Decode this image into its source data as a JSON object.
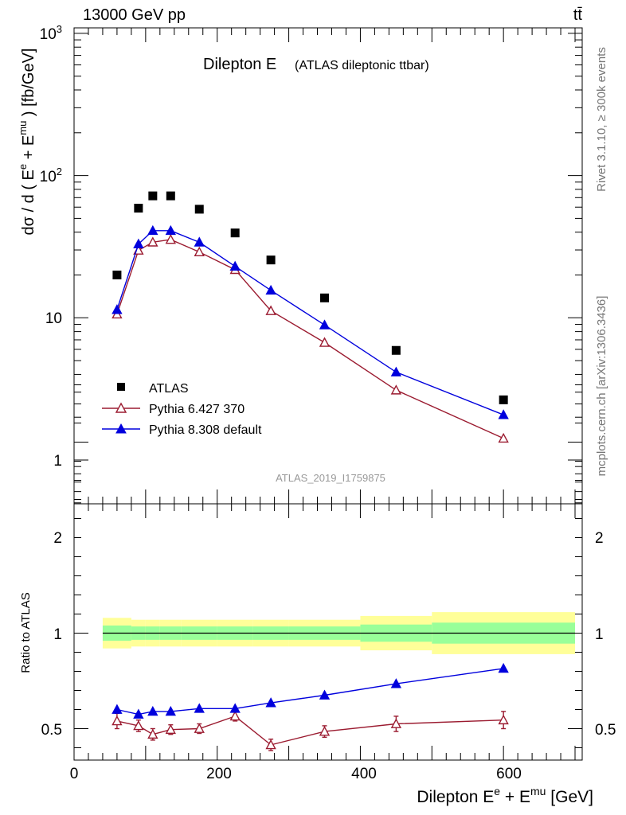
{
  "header": {
    "left": "13000 GeV pp",
    "right": "tt̄"
  },
  "side_labels": {
    "rivet": "Rivet 3.1.10, ≥ 300k events",
    "mcplots": "mcplots.cern.ch [arXiv:1306.3436]"
  },
  "chart_data": [
    {
      "type": "scatter",
      "title_main": "Dilepton E",
      "title_sub": "(ATLAS dileptonic ttbar)",
      "ylabel": "dσ / d ( E^e + E^mu ) [fb/GeV]",
      "yscale": "log",
      "ylim": [
        0.5,
        1000
      ],
      "xlim": [
        0,
        710
      ],
      "y_tick_labels": [
        "1",
        "10",
        "10^2",
        "10^3"
      ],
      "watermark": "ATLAS_2019_I1759875",
      "legend_position": "lower-left",
      "x": [
        60,
        90,
        110,
        135,
        175,
        225,
        275,
        350,
        450,
        600
      ],
      "series": [
        {
          "name": "ATLAS",
          "color": "#000000",
          "marker": "filled-square",
          "line": false,
          "values": [
            20.0,
            59.0,
            72.0,
            72.0,
            58.0,
            39.5,
            25.5,
            13.8,
            5.9,
            2.65
          ]
        },
        {
          "name": "Pythia 6.427 370",
          "color": "#9b1b30",
          "marker": "open-triangle",
          "line": true,
          "values": [
            10.6,
            29.8,
            34.0,
            35.5,
            29.0,
            21.8,
            11.2,
            6.7,
            3.1,
            1.42
          ]
        },
        {
          "name": "Pythia 8.308 default",
          "color": "#0000dd",
          "marker": "filled-triangle",
          "line": true,
          "values": [
            11.4,
            33.0,
            41.0,
            41.0,
            34.0,
            23.0,
            15.6,
            8.9,
            4.15,
            2.08
          ]
        }
      ]
    },
    {
      "type": "line",
      "ylabel": "Ratio to ATLAS",
      "xlabel": "Dilepton E^e + E^mu [GeV]",
      "xlim": [
        0,
        710
      ],
      "ylim": [
        0.35,
        2.4
      ],
      "x_tick_labels": [
        "0",
        "200",
        "400",
        "600"
      ],
      "y_tick_labels": [
        "0.5",
        "1",
        "2"
      ],
      "reference_line": 1,
      "x": [
        60,
        90,
        110,
        135,
        175,
        225,
        275,
        350,
        450,
        600
      ],
      "bands": {
        "edges": [
          40,
          80,
          100,
          120,
          150,
          200,
          250,
          300,
          400,
          500,
          700
        ],
        "yellow": [
          [
            0.92,
            1.08
          ],
          [
            0.93,
            1.07
          ],
          [
            0.93,
            1.07
          ],
          [
            0.93,
            1.07
          ],
          [
            0.93,
            1.07
          ],
          [
            0.93,
            1.07
          ],
          [
            0.93,
            1.07
          ],
          [
            0.93,
            1.07
          ],
          [
            0.91,
            1.09
          ],
          [
            0.89,
            1.11
          ]
        ],
        "green": [
          [
            0.96,
            1.04
          ],
          [
            0.965,
            1.035
          ],
          [
            0.965,
            1.035
          ],
          [
            0.965,
            1.035
          ],
          [
            0.965,
            1.035
          ],
          [
            0.965,
            1.035
          ],
          [
            0.965,
            1.035
          ],
          [
            0.965,
            1.035
          ],
          [
            0.955,
            1.045
          ],
          [
            0.945,
            1.055
          ]
        ],
        "yellow_color": "#ffff99",
        "green_color": "#99ff99"
      },
      "series": [
        {
          "name": "Pythia 6.427 370",
          "color": "#9b1b30",
          "marker": "open-triangle",
          "values": [
            0.54,
            0.515,
            0.47,
            0.495,
            0.5,
            0.565,
            0.415,
            0.485,
            0.525,
            0.545
          ],
          "errors": [
            0.04,
            0.03,
            0.03,
            0.025,
            0.025,
            0.025,
            0.03,
            0.03,
            0.04,
            0.045
          ]
        },
        {
          "name": "Pythia 8.308 default",
          "color": "#0000dd",
          "marker": "filled-triangle",
          "values": [
            0.6,
            0.575,
            0.59,
            0.59,
            0.605,
            0.605,
            0.635,
            0.675,
            0.735,
            0.815
          ],
          "errors": [
            0,
            0,
            0,
            0,
            0,
            0,
            0,
            0,
            0,
            0
          ]
        }
      ]
    }
  ]
}
